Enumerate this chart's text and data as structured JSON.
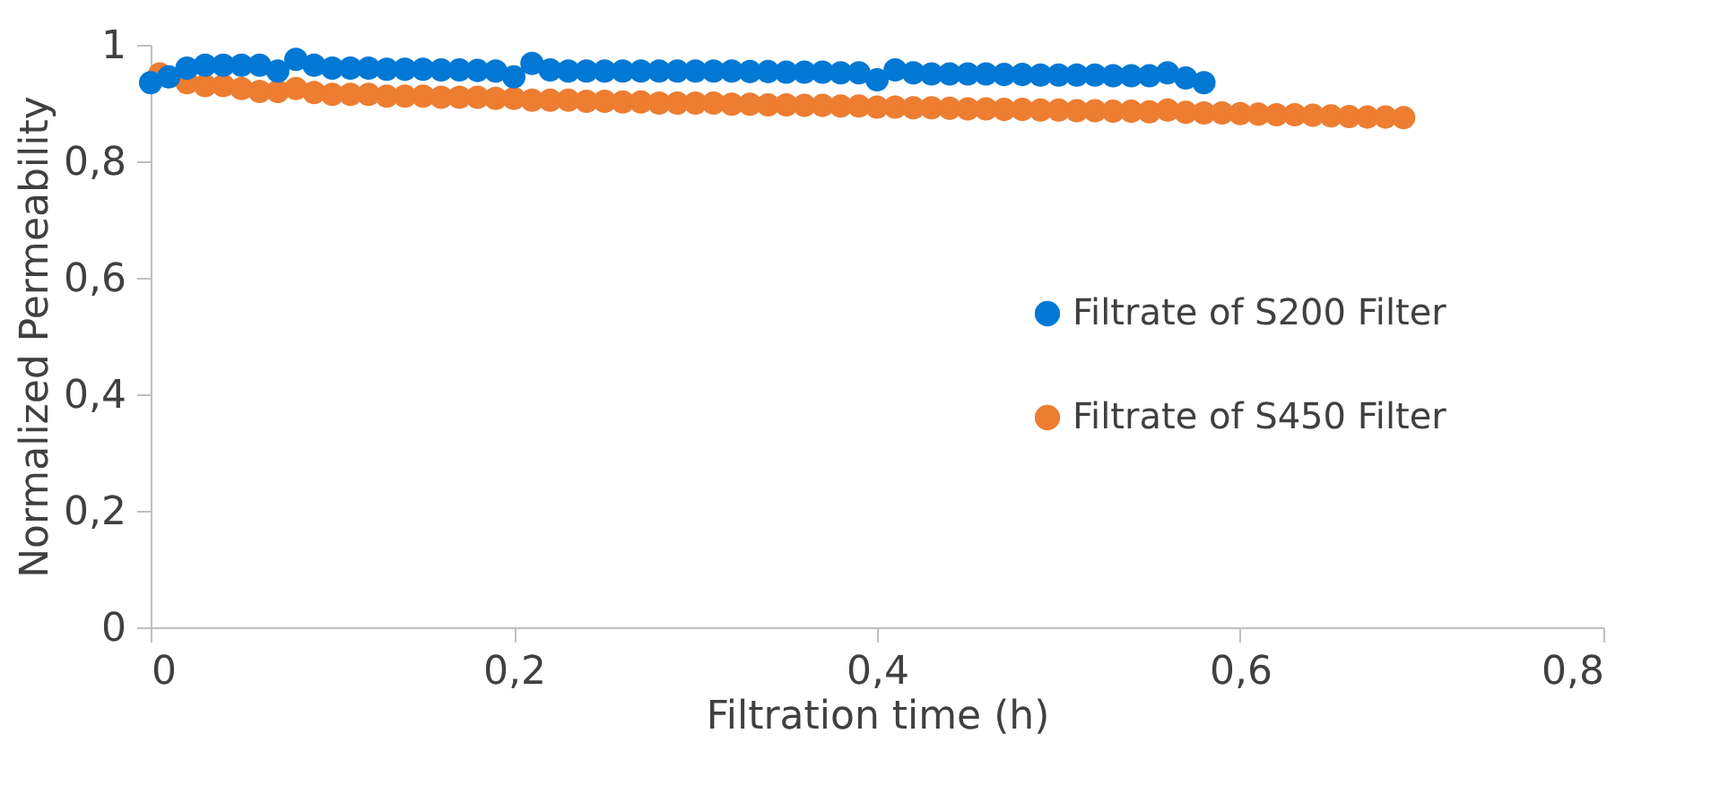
{
  "chart_data": {
    "type": "scatter",
    "xlabel": "Filtration time (h)",
    "ylabel": "Normalized Permeability",
    "xlim": [
      0,
      0.8
    ],
    "ylim": [
      0,
      1
    ],
    "xticks": [
      0,
      {
        "value": 0.2,
        "label": "0,2"
      },
      {
        "value": 0.4,
        "label": "0,4"
      },
      {
        "value": 0.6,
        "label": "0,6"
      },
      {
        "value": 0.8,
        "label": "0,8"
      }
    ],
    "yticks": [
      0,
      {
        "value": 0.2,
        "label": "0,2"
      },
      {
        "value": 0.4,
        "label": "0,4"
      },
      {
        "value": 0.6,
        "label": "0,6"
      },
      {
        "value": 0.8,
        "label": "0,8"
      },
      1
    ],
    "grid": false,
    "legend": "right",
    "marker": "circle",
    "series": [
      {
        "name": "Filtrate of S200 Filter",
        "color": "#0078d4",
        "x": [
          0,
          0.01,
          0.02,
          0.03,
          0.04,
          0.05,
          0.06,
          0.07,
          0.08,
          0.09,
          0.1,
          0.11,
          0.12,
          0.13,
          0.14,
          0.15,
          0.16,
          0.17,
          0.18,
          0.19,
          0.2,
          0.21,
          0.22,
          0.23,
          0.24,
          0.25,
          0.26,
          0.27,
          0.28,
          0.29,
          0.3,
          0.31,
          0.32,
          0.33,
          0.34,
          0.35,
          0.36,
          0.37,
          0.38,
          0.39,
          0.4,
          0.41,
          0.42,
          0.43,
          0.44,
          0.45,
          0.46,
          0.47,
          0.48,
          0.49,
          0.5,
          0.51,
          0.52,
          0.53,
          0.54,
          0.55,
          0.56,
          0.57,
          0.58
        ],
        "values": [
          0.935,
          0.945,
          0.96,
          0.965,
          0.965,
          0.965,
          0.965,
          0.955,
          0.975,
          0.965,
          0.96,
          0.96,
          0.96,
          0.958,
          0.958,
          0.958,
          0.957,
          0.957,
          0.956,
          0.955,
          0.945,
          0.968,
          0.957,
          0.955,
          0.955,
          0.955,
          0.955,
          0.955,
          0.955,
          0.955,
          0.955,
          0.955,
          0.955,
          0.954,
          0.954,
          0.953,
          0.953,
          0.953,
          0.952,
          0.952,
          0.94,
          0.957,
          0.952,
          0.95,
          0.95,
          0.95,
          0.95,
          0.949,
          0.949,
          0.948,
          0.948,
          0.948,
          0.948,
          0.947,
          0.947,
          0.947,
          0.952,
          0.943,
          0.935
        ]
      },
      {
        "name": "Filtrate of S450 Filter",
        "color": "#ed7d31",
        "x": [
          0.005,
          0.02,
          0.03,
          0.04,
          0.05,
          0.06,
          0.07,
          0.08,
          0.09,
          0.1,
          0.11,
          0.12,
          0.13,
          0.14,
          0.15,
          0.16,
          0.17,
          0.18,
          0.19,
          0.2,
          0.21,
          0.22,
          0.23,
          0.24,
          0.25,
          0.26,
          0.27,
          0.28,
          0.29,
          0.3,
          0.31,
          0.32,
          0.33,
          0.34,
          0.35,
          0.36,
          0.37,
          0.38,
          0.39,
          0.4,
          0.41,
          0.42,
          0.43,
          0.44,
          0.45,
          0.46,
          0.47,
          0.48,
          0.49,
          0.5,
          0.51,
          0.52,
          0.53,
          0.54,
          0.55,
          0.56,
          0.57,
          0.58,
          0.59,
          0.6,
          0.61,
          0.62,
          0.63,
          0.64,
          0.65,
          0.66,
          0.67,
          0.68,
          0.69
        ],
        "values": [
          0.95,
          0.935,
          0.93,
          0.93,
          0.925,
          0.92,
          0.92,
          0.925,
          0.918,
          0.915,
          0.915,
          0.915,
          0.912,
          0.912,
          0.912,
          0.91,
          0.91,
          0.91,
          0.908,
          0.908,
          0.905,
          0.905,
          0.905,
          0.903,
          0.903,
          0.902,
          0.902,
          0.9,
          0.9,
          0.9,
          0.9,
          0.898,
          0.898,
          0.897,
          0.897,
          0.896,
          0.896,
          0.895,
          0.895,
          0.893,
          0.893,
          0.892,
          0.892,
          0.891,
          0.89,
          0.89,
          0.889,
          0.889,
          0.888,
          0.888,
          0.887,
          0.887,
          0.886,
          0.886,
          0.885,
          0.888,
          0.884,
          0.883,
          0.883,
          0.882,
          0.881,
          0.88,
          0.88,
          0.879,
          0.878,
          0.877,
          0.876,
          0.876,
          0.875
        ]
      }
    ]
  }
}
